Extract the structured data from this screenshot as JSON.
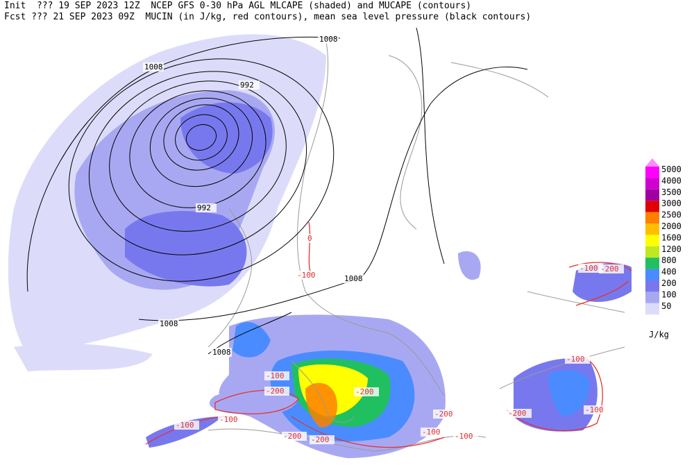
{
  "header": {
    "line1": "Init  ??? 19 SEP 2023 12Z  NCEP GFS 0-30 hPa AGL MLCAPE (shaded) and MUCAPE (contours)",
    "line2": "Fcst ??? 21 SEP 2023 09Z  MUCIN (in J/kg, red contours), mean sea level pressure (black contours)"
  },
  "pressure_labels": [
    "1008",
    "1008",
    "992",
    "992",
    "1008",
    "1008",
    "1008"
  ],
  "cin_labels": [
    "0",
    "-100",
    "-100",
    "-200",
    "-200",
    "-100",
    "-200",
    "-100",
    "-100",
    "-100",
    "-200",
    "-200",
    "-200",
    "-100",
    "-100",
    "-200",
    "-100"
  ],
  "colorbar": {
    "levels": [
      5000,
      4000,
      3500,
      3000,
      2500,
      2000,
      1600,
      1200,
      800,
      400,
      200,
      100,
      50
    ],
    "colors": [
      "#ff00ff",
      "#d000d0",
      "#a000a0",
      "#e00000",
      "#ff7f00",
      "#ffbf00",
      "#ffff00",
      "#c0e820",
      "#20c060",
      "#4a8cff",
      "#7878ee",
      "#a8a8f2",
      "#dcdcfa"
    ],
    "unit": "J/kg"
  }
}
